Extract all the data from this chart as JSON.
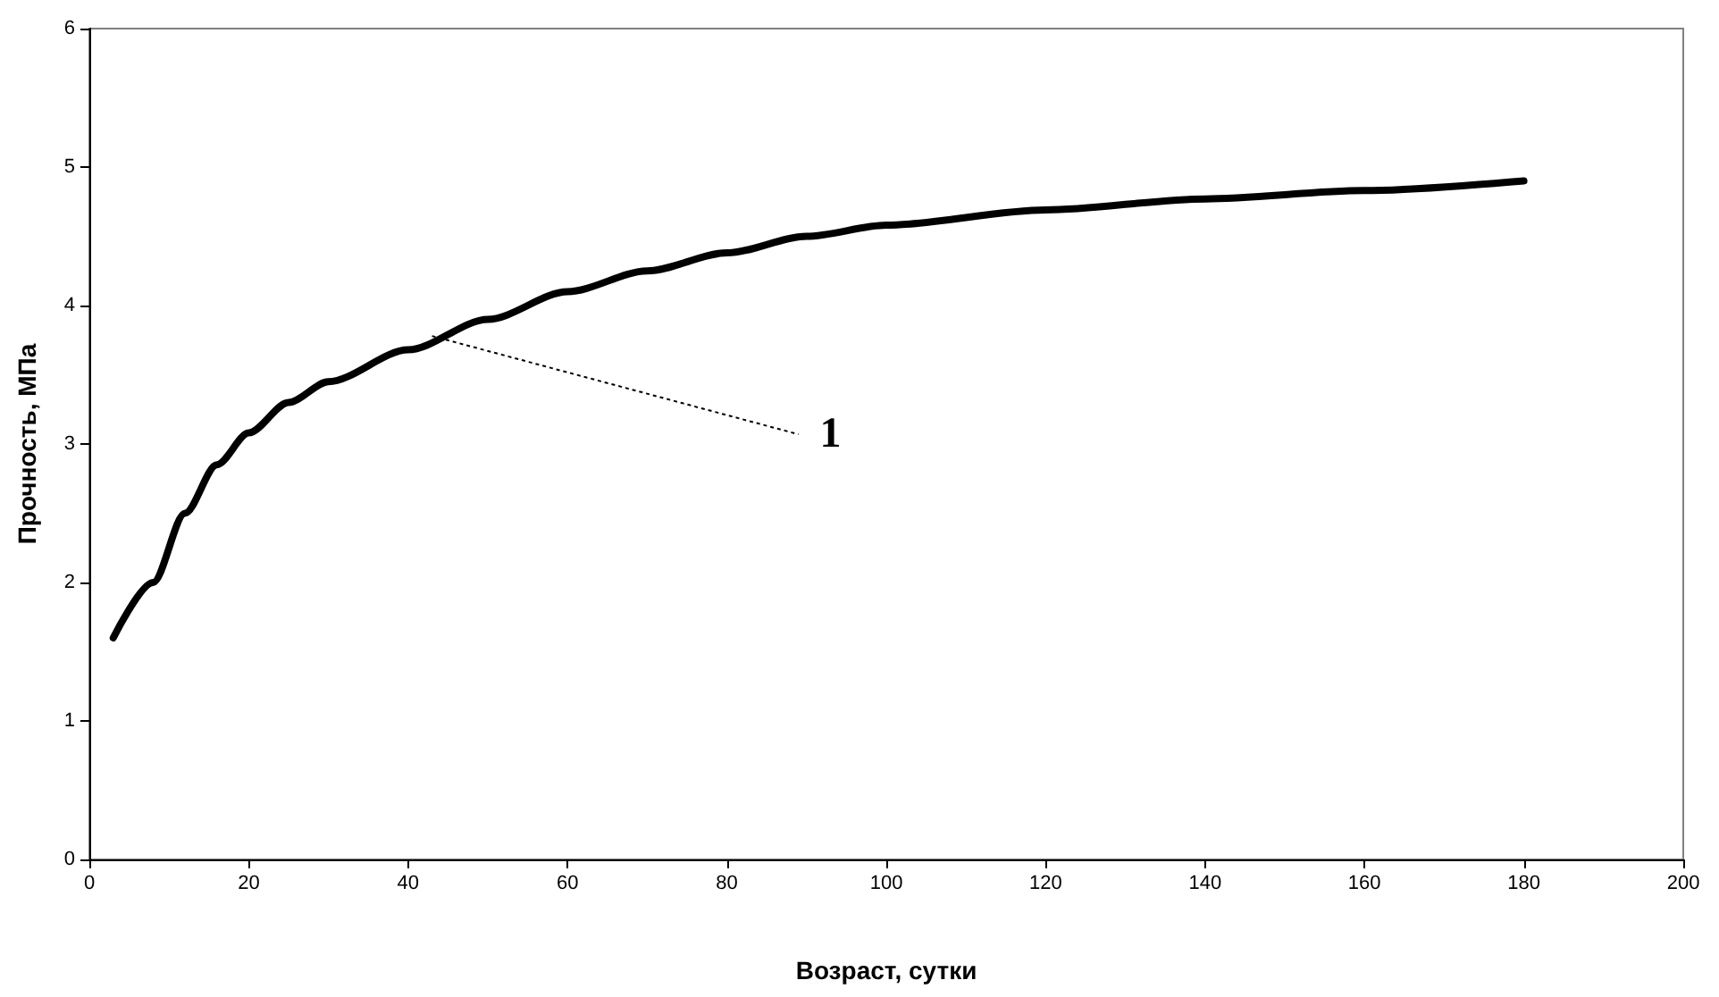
{
  "chart_data": {
    "type": "line",
    "xlabel": "Возраст, сутки",
    "ylabel": "Прочность, МПа",
    "xlim": [
      0,
      200
    ],
    "xticks": [
      0,
      20,
      40,
      60,
      80,
      100,
      120,
      140,
      160,
      180,
      200
    ],
    "ylim": [
      0,
      6
    ],
    "yticks": [
      0,
      1,
      2,
      3,
      4,
      5,
      6
    ],
    "grid": false,
    "marker": "none",
    "line_style": "solid",
    "series": [
      {
        "color": "#000000",
        "x": [
          3,
          8,
          12,
          16,
          20,
          25,
          30,
          40,
          50,
          60,
          70,
          80,
          90,
          100,
          120,
          140,
          160,
          180
        ],
        "values": [
          1.6,
          2.0,
          2.5,
          2.85,
          3.08,
          3.3,
          3.45,
          3.68,
          3.9,
          4.1,
          4.25,
          4.38,
          4.5,
          4.58,
          4.69,
          4.77,
          4.83,
          4.9
        ]
      }
    ],
    "annotations": [
      {
        "text": "1",
        "x": 43,
        "y": 3.78
      }
    ]
  }
}
